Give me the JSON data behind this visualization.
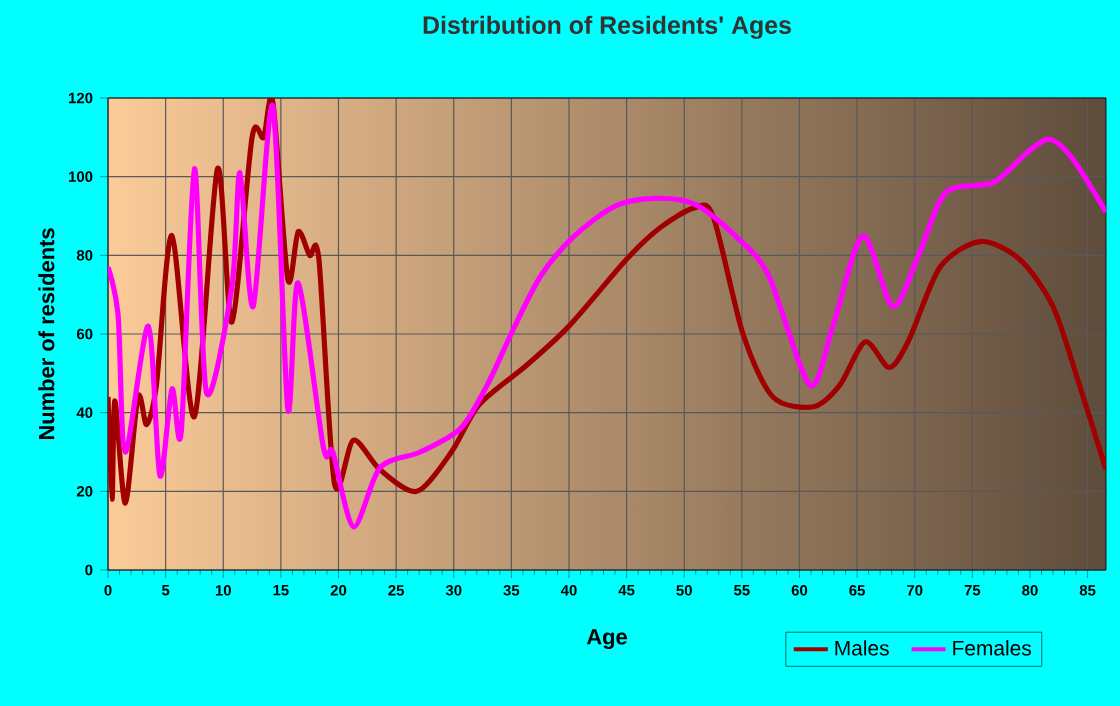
{
  "chart_data": {
    "type": "line",
    "title": "Distribution of Residents' Ages",
    "xlabel": "Age",
    "ylabel": "Number of residents",
    "xlim": [
      0,
      86.6
    ],
    "ylim": [
      0,
      120
    ],
    "xticks": [
      0,
      5,
      10,
      15,
      20,
      25,
      30,
      35,
      40,
      45,
      50,
      55,
      60,
      65,
      70,
      75,
      80,
      85
    ],
    "yticks": [
      0,
      20,
      40,
      60,
      80,
      100,
      120
    ],
    "grid": true,
    "legend": "bottom right",
    "marker": "none",
    "line_style": "solid",
    "series": [
      {
        "name": "Males",
        "color": "#a00000",
        "x": [
          0,
          0.35,
          0.6,
          1.5,
          2.6,
          3.35,
          4.2,
          5.55,
          7.5,
          9.5,
          10.75,
          12.5,
          13.5,
          14.3,
          15.6,
          16.5,
          17.5,
          18.3,
          19.65,
          21.3,
          23.6,
          26.8,
          29.8,
          32.2,
          36.3,
          40,
          45,
          47.9,
          50.8,
          52.5,
          55.1,
          57.7,
          61.2,
          63.5,
          65.7,
          67.8,
          69.5,
          72.2,
          75.7,
          79.1,
          82,
          84.3,
          86.6
        ],
        "values": [
          44,
          18,
          43,
          17,
          44,
          37,
          47,
          85,
          39,
          102,
          63,
          110,
          110,
          119,
          74,
          86,
          80,
          79,
          22,
          33,
          25.5,
          20,
          30,
          42,
          52,
          62,
          79,
          87,
          92,
          90,
          60,
          44,
          41.5,
          47,
          58,
          51.5,
          58.5,
          77,
          83.5,
          79,
          67,
          47,
          25.5
        ]
      },
      {
        "name": "Females",
        "color": "#ff00ff",
        "x": [
          0,
          0.87,
          1.5,
          3.5,
          4.5,
          5.55,
          6.35,
          7.5,
          8.55,
          10.75,
          11.45,
          12.6,
          14.3,
          15.6,
          16.5,
          18.7,
          19.5,
          21.3,
          23.6,
          27.1,
          30.6,
          32.9,
          35.3,
          37.6,
          40.5,
          44,
          47.4,
          50.9,
          54.4,
          57.3,
          60.9,
          62.9,
          65.5,
          68.1,
          70.4,
          72.7,
          76.8,
          79.7,
          81.7,
          83.7,
          86.6
        ],
        "values": [
          77,
          65,
          30,
          62,
          24,
          46,
          35,
          102,
          45,
          72,
          101,
          67,
          118,
          41,
          73,
          31,
          30,
          11,
          26,
          30,
          36,
          47,
          62,
          75,
          85,
          92.5,
          94.5,
          93,
          85,
          75,
          47,
          62,
          85,
          67,
          80.5,
          96,
          98.5,
          106,
          109.5,
          104.5,
          91
        ]
      }
    ]
  }
}
